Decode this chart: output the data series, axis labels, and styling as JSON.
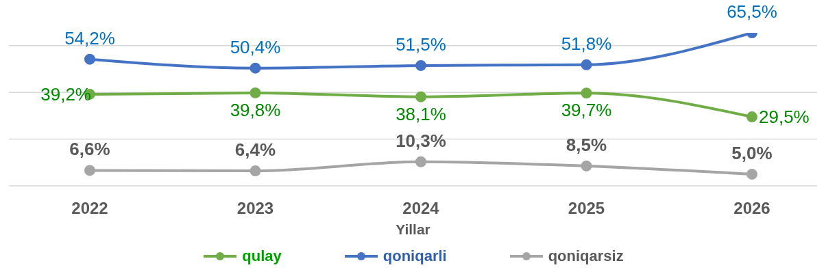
{
  "chart_data": {
    "type": "line",
    "xlabel": "Yillar",
    "categories": [
      "2022",
      "2023",
      "2024",
      "2025",
      "2026"
    ],
    "series": [
      {
        "name": "qulay",
        "color": "#70ad47",
        "values": [
          39.2,
          39.8,
          38.1,
          39.7,
          29.5
        ],
        "value_labels": [
          "39,2%",
          "39,8%",
          "38,1%",
          "39,7%",
          "29,5%"
        ]
      },
      {
        "name": "qoniqarli",
        "color": "#4472c4",
        "values": [
          54.2,
          50.4,
          51.5,
          51.8,
          65.5
        ],
        "value_labels": [
          "54,2%",
          "50,4%",
          "51,5%",
          "51,8%",
          "65,5%"
        ]
      },
      {
        "name": "qoniqarsiz",
        "color": "#a5a5a5",
        "values": [
          6.6,
          6.4,
          10.3,
          8.5,
          5.0
        ],
        "value_labels": [
          "6,6%",
          "6,4%",
          "10,3%",
          "8,5%",
          "5,0%"
        ]
      }
    ],
    "yticks": [
      {
        "value": 0,
        "label": null
      },
      {
        "value": 20,
        "label": null
      },
      {
        "value": 40,
        "label": null
      },
      {
        "value": 60,
        "label": null
      }
    ],
    "tick_labels": "x",
    "grid": "y",
    "legend": "bottom",
    "marker": "circle",
    "line_style": "solid"
  }
}
